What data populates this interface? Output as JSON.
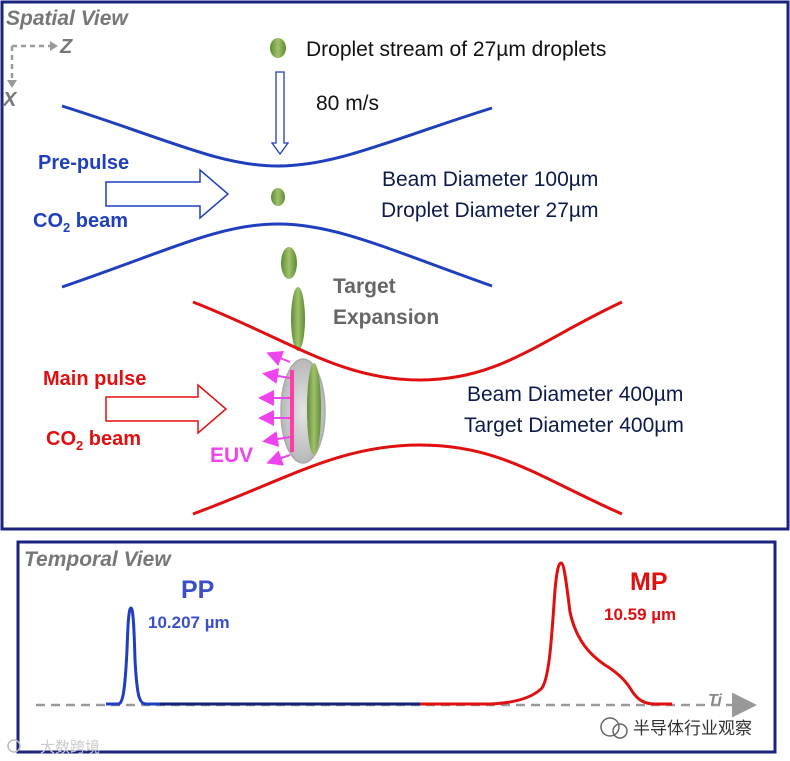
{
  "spatial_view": {
    "title": "Spatial View",
    "axis_z": "Z",
    "axis_x": "X",
    "droplet_stream_label": "Droplet stream of 27µm droplets",
    "velocity_label": "80 m/s",
    "prepulse": {
      "label_line1": "Pre-pulse",
      "label_line2_main": "CO",
      "label_line2_sub": "2",
      "label_line2_rest": " beam",
      "beam_diameter": "Beam Diameter 100µm",
      "droplet_diameter": "Droplet Diameter 27µm"
    },
    "target_expansion_line1": "Target",
    "target_expansion_line2": "Expansion",
    "main_pulse": {
      "label_line1": "Main pulse",
      "label_line2_main": "CO",
      "label_line2_sub": "2",
      "label_line2_rest": " beam",
      "beam_diameter": "Beam Diameter 400µm",
      "target_diameter": "Target Diameter 400µm"
    },
    "euv_label": "EUV"
  },
  "temporal_view": {
    "title": "Temporal View",
    "pp_label": "PP",
    "pp_wavelength": "10.207 µm",
    "mp_label": "MP",
    "mp_wavelength": "10.59 µm",
    "axis_label": "Ti"
  },
  "watermarks": {
    "left": "大数跨境",
    "right": "半导体行业观察"
  },
  "colors": {
    "blue": "#1f3fbf",
    "red": "#e01010",
    "magenta": "#ee44ee",
    "droplet_green": "#7aa04a",
    "frame_navy": "#1a237e",
    "gray_text": "#777777"
  }
}
